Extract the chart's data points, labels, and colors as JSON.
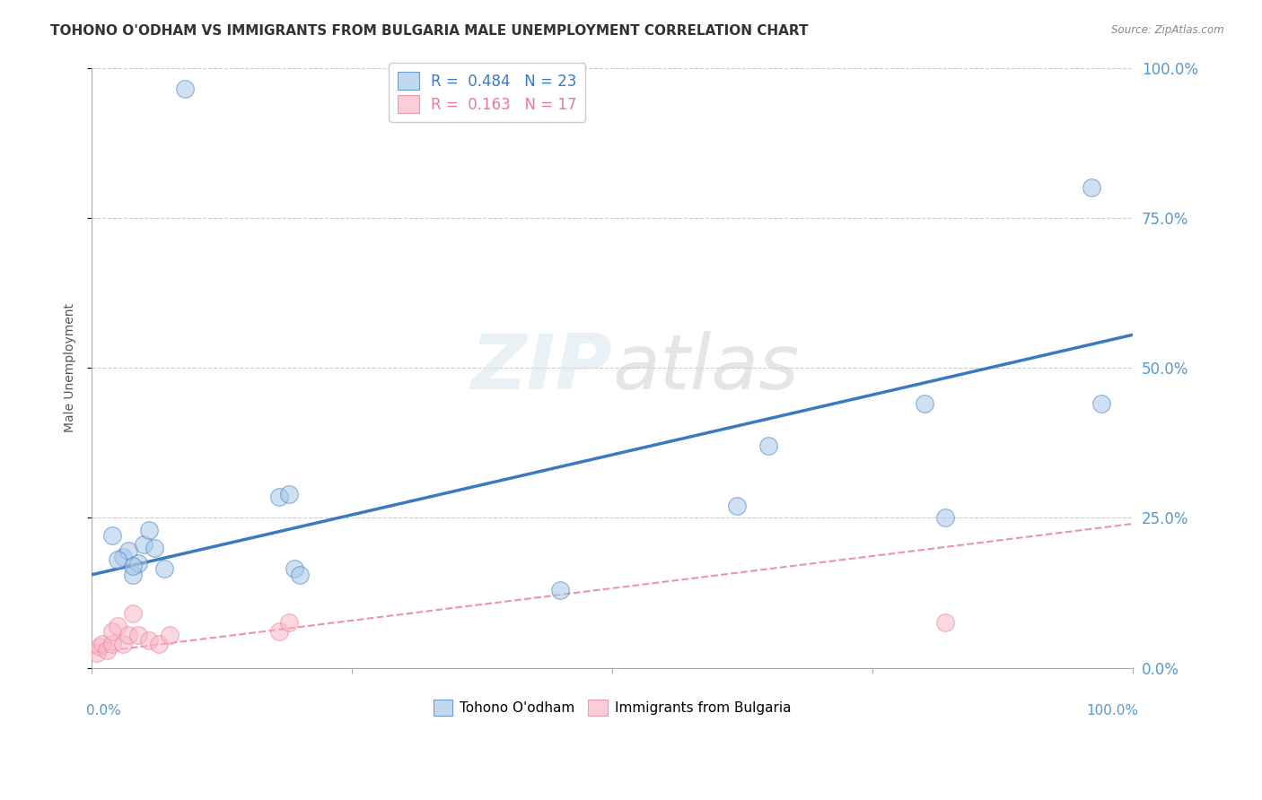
{
  "title": "TOHONO O'ODHAM VS IMMIGRANTS FROM BULGARIA MALE UNEMPLOYMENT CORRELATION CHART",
  "source": "Source: ZipAtlas.com",
  "ylabel": "Male Unemployment",
  "xlim": [
    0,
    1.0
  ],
  "ylim": [
    0,
    1.0
  ],
  "xtick_vals": [
    0,
    0.25,
    0.5,
    0.75,
    1.0
  ],
  "ytick_labels": [
    "0.0%",
    "25.0%",
    "50.0%",
    "75.0%",
    "100.0%"
  ],
  "ytick_vals": [
    0,
    0.25,
    0.5,
    0.75,
    1.0
  ],
  "blue_scatter_x": [
    0.02,
    0.03,
    0.035,
    0.04,
    0.045,
    0.05,
    0.055,
    0.06,
    0.07,
    0.09,
    0.18,
    0.19,
    0.195,
    0.2,
    0.45,
    0.62,
    0.65,
    0.8,
    0.82,
    0.96,
    0.97,
    0.04,
    0.025
  ],
  "blue_scatter_y": [
    0.22,
    0.185,
    0.195,
    0.155,
    0.175,
    0.205,
    0.23,
    0.2,
    0.165,
    0.965,
    0.285,
    0.29,
    0.165,
    0.155,
    0.13,
    0.27,
    0.37,
    0.44,
    0.25,
    0.8,
    0.44,
    0.17,
    0.18
  ],
  "pink_scatter_x": [
    0.005,
    0.008,
    0.01,
    0.015,
    0.02,
    0.02,
    0.025,
    0.03,
    0.035,
    0.04,
    0.045,
    0.055,
    0.065,
    0.075,
    0.18,
    0.19,
    0.82
  ],
  "pink_scatter_y": [
    0.025,
    0.035,
    0.04,
    0.03,
    0.04,
    0.06,
    0.07,
    0.04,
    0.055,
    0.09,
    0.055,
    0.045,
    0.04,
    0.055,
    0.06,
    0.075,
    0.075
  ],
  "blue_line_x": [
    0,
    1.0
  ],
  "blue_line_y": [
    0.155,
    0.555
  ],
  "pink_line_x": [
    0,
    1.0
  ],
  "pink_line_y": [
    0.025,
    0.24
  ],
  "blue_color": "#a8c8e8",
  "blue_line_color": "#3a7abf",
  "pink_color": "#f8b8c8",
  "pink_line_color": "#e87898",
  "legend_blue_R": "0.484",
  "legend_blue_N": "23",
  "legend_pink_R": "0.163",
  "legend_pink_N": "17",
  "legend_label_blue": "Tohono O'odham",
  "legend_label_pink": "Immigrants from Bulgaria",
  "watermark_zip": "ZIP",
  "watermark_atlas": "atlas",
  "background_color": "#ffffff",
  "grid_color": "#cccccc",
  "title_fontsize": 11,
  "axis_label_fontsize": 10,
  "tick_fontsize": 10,
  "marker_size": 200,
  "right_tick_color": "#5599cc"
}
